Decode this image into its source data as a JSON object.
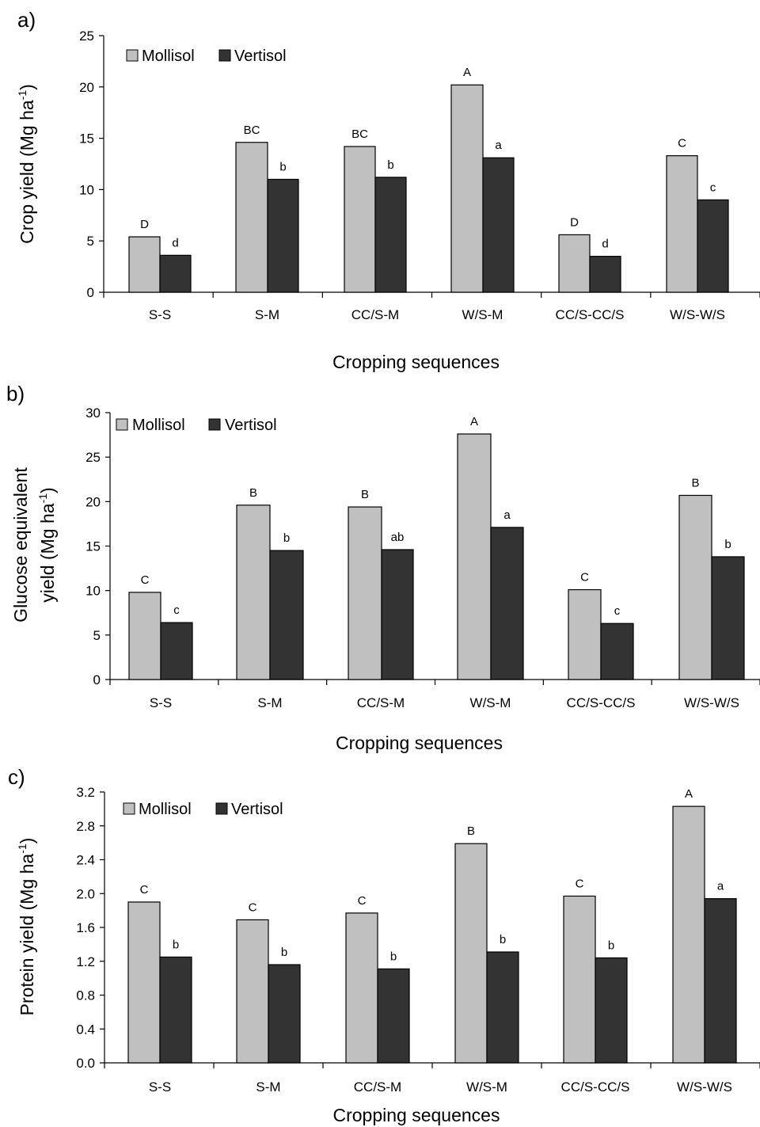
{
  "colors": {
    "mollisol": "#c0c0c0",
    "vertisol": "#333333",
    "stroke": "#000000"
  },
  "chart_data": [
    {
      "type": "bar",
      "panel": "a)",
      "categories": [
        "S-S",
        "S-M",
        "CC/S-M",
        "W/S-M",
        "CC/S-CC/S",
        "W/S-W/S"
      ],
      "series": [
        {
          "name": "Mollisol",
          "values": [
            5.4,
            14.6,
            14.2,
            20.2,
            5.6,
            13.3
          ],
          "letters": [
            "D",
            "BC",
            "BC",
            "A",
            "D",
            "C"
          ]
        },
        {
          "name": "Vertisol",
          "values": [
            3.6,
            11.0,
            11.2,
            13.1,
            3.5,
            9.0
          ],
          "letters": [
            "d",
            "b",
            "b",
            "a",
            "d",
            "c"
          ]
        }
      ],
      "ylabel_main": "Crop yield (Mg ha",
      "ylabel_sup": "-1",
      "ylabel_close": ")",
      "xlabel": "Cropping sequences",
      "ylim": [
        0,
        25
      ],
      "yticks": [
        "0",
        "5",
        "10",
        "15",
        "20",
        "25"
      ],
      "legend": "top-left",
      "grid": false
    },
    {
      "type": "bar",
      "panel": "b)",
      "categories": [
        "S-S",
        "S-M",
        "CC/S-M",
        "W/S-M",
        "CC/S-CC/S",
        "W/S-W/S"
      ],
      "series": [
        {
          "name": "Mollisol",
          "values": [
            9.8,
            19.6,
            19.4,
            27.6,
            10.1,
            20.7
          ],
          "letters": [
            "C",
            "B",
            "B",
            "A",
            "C",
            "B"
          ]
        },
        {
          "name": "Vertisol",
          "values": [
            6.4,
            14.5,
            14.6,
            17.1,
            6.3,
            13.8
          ],
          "letters": [
            "c",
            "b",
            "ab",
            "a",
            "c",
            "b"
          ]
        }
      ],
      "ylabel_line1": "Glucose equivalent",
      "ylabel_main": "yield (Mg ha",
      "ylabel_sup": "-1",
      "ylabel_close": ")",
      "xlabel": "Cropping sequences",
      "ylim": [
        0,
        30
      ],
      "yticks": [
        "0",
        "5",
        "10",
        "15",
        "20",
        "25",
        "30"
      ],
      "legend": "top-left",
      "grid": false
    },
    {
      "type": "bar",
      "panel": "c)",
      "categories": [
        "S-S",
        "S-M",
        "CC/S-M",
        "W/S-M",
        "CC/S-CC/S",
        "W/S-W/S"
      ],
      "series": [
        {
          "name": "Mollisol",
          "values": [
            1.9,
            1.69,
            1.77,
            2.59,
            1.97,
            3.03
          ],
          "letters": [
            "C",
            "C",
            "C",
            "B",
            "C",
            "A"
          ]
        },
        {
          "name": "Vertisol",
          "values": [
            1.25,
            1.16,
            1.11,
            1.31,
            1.24,
            1.94
          ],
          "letters": [
            "b",
            "b",
            "b",
            "b",
            "b",
            "a"
          ]
        }
      ],
      "ylabel_main": "Protein yield (Mg ha",
      "ylabel_sup": "-1",
      "ylabel_close": ")",
      "xlabel": "Cropping sequences",
      "ylim": [
        0,
        3.2
      ],
      "yticks": [
        "0.0",
        "0.4",
        "0.8",
        "1.2",
        "1.6",
        "2.0",
        "2.4",
        "2.8",
        "3.2"
      ],
      "legend": "top-left",
      "grid": false
    }
  ]
}
